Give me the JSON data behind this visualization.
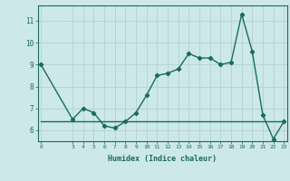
{
  "x": [
    0,
    3,
    4,
    5,
    6,
    7,
    8,
    9,
    10,
    11,
    12,
    13,
    14,
    15,
    16,
    17,
    18,
    19,
    20,
    21,
    22,
    23
  ],
  "y_curve": [
    9.0,
    6.5,
    7.0,
    6.8,
    6.2,
    6.1,
    6.4,
    6.8,
    7.6,
    8.5,
    8.6,
    8.8,
    9.5,
    9.3,
    9.3,
    9.0,
    9.1,
    11.3,
    9.6,
    6.7,
    5.6,
    6.4
  ],
  "y_hline": [
    6.4,
    6.4,
    6.4,
    6.4,
    6.4,
    6.4,
    6.4,
    6.4,
    6.4,
    6.4,
    6.4,
    6.4,
    6.4,
    6.4,
    6.4,
    6.4,
    6.4,
    6.4,
    6.4,
    6.4,
    6.4,
    6.4
  ],
  "x_ticks": [
    0,
    3,
    4,
    5,
    6,
    7,
    8,
    9,
    10,
    11,
    12,
    13,
    14,
    15,
    16,
    17,
    18,
    19,
    20,
    21,
    22,
    23
  ],
  "y_ticks": [
    6,
    7,
    8,
    9,
    10,
    11
  ],
  "xlim": [
    -0.3,
    23.3
  ],
  "ylim": [
    5.5,
    11.7
  ],
  "xlabel": "Humidex (Indice chaleur)",
  "line_color": "#1a6b5a",
  "bg_color": "#cce8e8",
  "grid_color": "#b8d4d4",
  "marker": "D",
  "marker_size": 2.2,
  "linewidth": 1.0
}
